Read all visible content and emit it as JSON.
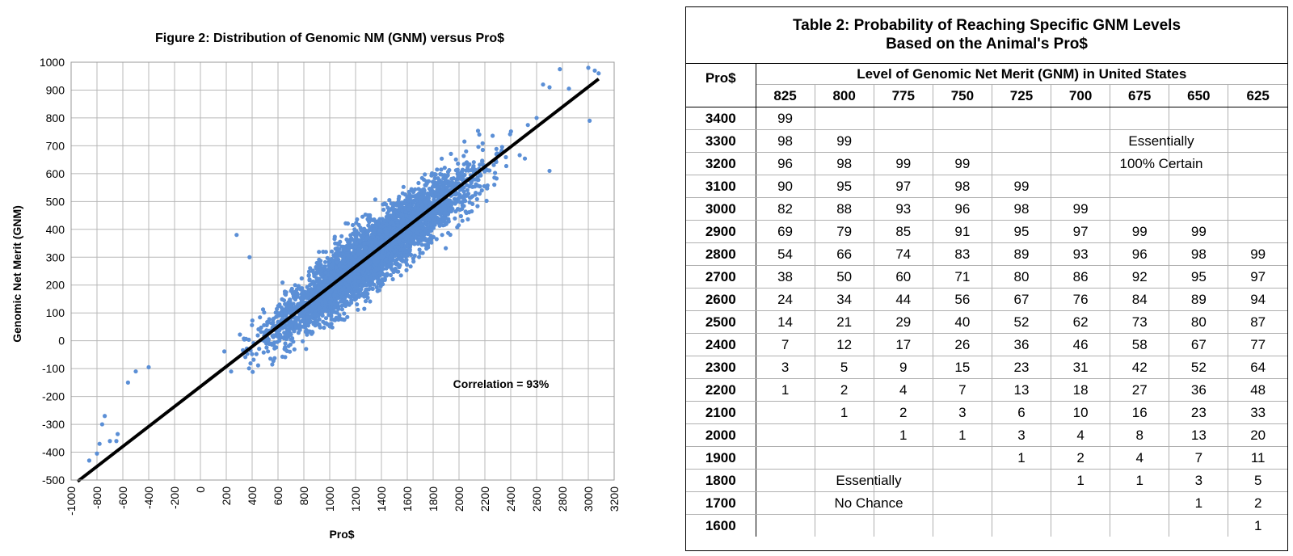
{
  "chart_data": {
    "type": "scatter",
    "title": "Figure 2: Distribution of Genomic NM (GNM) versus Pro$",
    "xlabel": "Pro$",
    "ylabel": "Genomic Net Merit (GNM)",
    "xlim": [
      -1000,
      3200
    ],
    "ylim": [
      -500,
      1000
    ],
    "xticks": [
      "-1000",
      "-800",
      "-600",
      "-400",
      "-200",
      "0",
      "200",
      "400",
      "600",
      "800",
      "1000",
      "1200",
      "1400",
      "1600",
      "1800",
      "2000",
      "2200",
      "2400",
      "2600",
      "2800",
      "3000",
      "3200"
    ],
    "yticks": [
      "-500",
      "-400",
      "-300",
      "-200",
      "-100",
      "0",
      "100",
      "200",
      "300",
      "400",
      "500",
      "600",
      "700",
      "800",
      "900",
      "1000"
    ],
    "grid": true,
    "annotation": "Correlation = 93%",
    "correlation": 0.93,
    "point_color": "#5b8fd6",
    "trend_line": {
      "x": [
        -950,
        3080
      ],
      "y": [
        -505,
        940
      ],
      "color": "#000000"
    },
    "sample_points": [
      {
        "x": -860,
        "y": -430
      },
      {
        "x": -800,
        "y": -405
      },
      {
        "x": -780,
        "y": -370
      },
      {
        "x": -760,
        "y": -300
      },
      {
        "x": -740,
        "y": -270
      },
      {
        "x": -700,
        "y": -360
      },
      {
        "x": -650,
        "y": -360
      },
      {
        "x": -640,
        "y": -335
      },
      {
        "x": -560,
        "y": -150
      },
      {
        "x": -500,
        "y": -110
      },
      {
        "x": -400,
        "y": -95
      },
      {
        "x": 280,
        "y": 380
      },
      {
        "x": 380,
        "y": 300
      },
      {
        "x": 2600,
        "y": 800
      },
      {
        "x": 2650,
        "y": 920
      },
      {
        "x": 2700,
        "y": 910
      },
      {
        "x": 2780,
        "y": 975
      },
      {
        "x": 2850,
        "y": 905
      },
      {
        "x": 3000,
        "y": 980
      },
      {
        "x": 3050,
        "y": 970
      },
      {
        "x": 3080,
        "y": 960
      },
      {
        "x": 3010,
        "y": 790
      },
      {
        "x": 2700,
        "y": 610
      }
    ]
  },
  "table": {
    "title_line1": "Table 2: Probability of Reaching Specific GNM Levels",
    "title_line2": "Based on the Animal's Pro$",
    "row_header": "Pro$",
    "group_header": "Level of Genomic Net Merit (GNM) in United States",
    "columns": [
      "825",
      "800",
      "775",
      "750",
      "725",
      "700",
      "675",
      "650",
      "625"
    ],
    "rows": [
      {
        "pro": "3400",
        "cells": [
          "99",
          "",
          "",
          "",
          "",
          "",
          "",
          "",
          ""
        ]
      },
      {
        "pro": "3300",
        "cells": [
          "98",
          "99",
          "",
          "",
          "",
          "",
          "",
          "",
          ""
        ]
      },
      {
        "pro": "3200",
        "cells": [
          "96",
          "98",
          "99",
          "99",
          "",
          "",
          "",
          "",
          ""
        ]
      },
      {
        "pro": "3100",
        "cells": [
          "90",
          "95",
          "97",
          "98",
          "99",
          "",
          "",
          "",
          ""
        ]
      },
      {
        "pro": "3000",
        "cells": [
          "82",
          "88",
          "93",
          "96",
          "98",
          "99",
          "",
          "",
          ""
        ]
      },
      {
        "pro": "2900",
        "cells": [
          "69",
          "79",
          "85",
          "91",
          "95",
          "97",
          "99",
          "99",
          ""
        ]
      },
      {
        "pro": "2800",
        "cells": [
          "54",
          "66",
          "74",
          "83",
          "89",
          "93",
          "96",
          "98",
          "99"
        ]
      },
      {
        "pro": "2700",
        "cells": [
          "38",
          "50",
          "60",
          "71",
          "80",
          "86",
          "92",
          "95",
          "97"
        ]
      },
      {
        "pro": "2600",
        "cells": [
          "24",
          "34",
          "44",
          "56",
          "67",
          "76",
          "84",
          "89",
          "94"
        ]
      },
      {
        "pro": "2500",
        "cells": [
          "14",
          "21",
          "29",
          "40",
          "52",
          "62",
          "73",
          "80",
          "87"
        ]
      },
      {
        "pro": "2400",
        "cells": [
          "7",
          "12",
          "17",
          "26",
          "36",
          "46",
          "58",
          "67",
          "77"
        ]
      },
      {
        "pro": "2300",
        "cells": [
          "3",
          "5",
          "9",
          "15",
          "23",
          "31",
          "42",
          "52",
          "64"
        ]
      },
      {
        "pro": "2200",
        "cells": [
          "1",
          "2",
          "4",
          "7",
          "13",
          "18",
          "27",
          "36",
          "48"
        ]
      },
      {
        "pro": "2100",
        "cells": [
          "",
          "1",
          "2",
          "3",
          "6",
          "10",
          "16",
          "23",
          "33"
        ]
      },
      {
        "pro": "2000",
        "cells": [
          "",
          "",
          "1",
          "1",
          "3",
          "4",
          "8",
          "13",
          "20"
        ]
      },
      {
        "pro": "1900",
        "cells": [
          "",
          "",
          "",
          "",
          "1",
          "2",
          "4",
          "7",
          "11"
        ]
      },
      {
        "pro": "1800",
        "cells": [
          "",
          "",
          "",
          "",
          "",
          "1",
          "1",
          "3",
          "5"
        ]
      },
      {
        "pro": "1700",
        "cells": [
          "",
          "",
          "",
          "",
          "",
          "",
          "",
          "1",
          "2"
        ]
      },
      {
        "pro": "1600",
        "cells": [
          "",
          "",
          "",
          "",
          "",
          "",
          "",
          "",
          "1"
        ]
      }
    ],
    "note_certain_1": "Essentially",
    "note_certain_2": "100% Certain",
    "note_chance_1": "Essentially",
    "note_chance_2": "No Chance"
  }
}
